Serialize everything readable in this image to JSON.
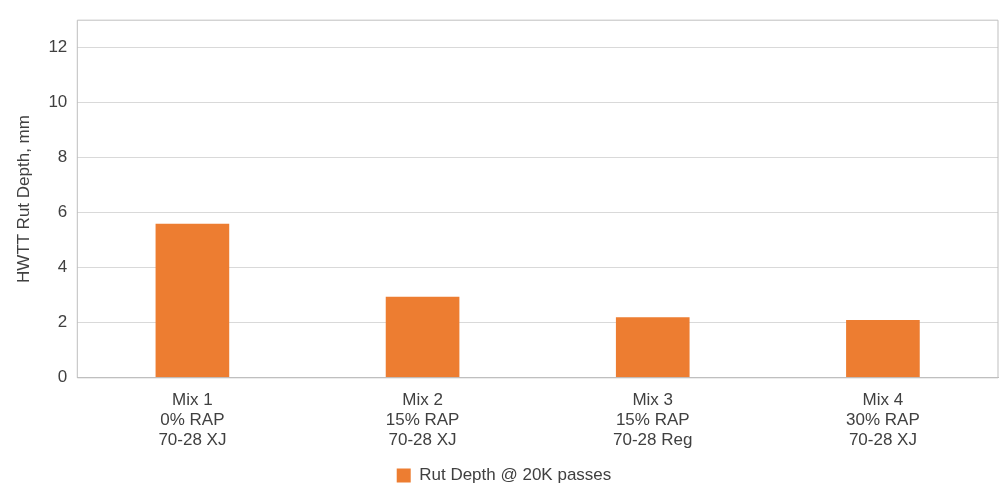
{
  "chart_data": {
    "type": "bar",
    "ylabel": "HWTT Rut Depth, mm",
    "categories": [
      "Mix 1\n0% RAP\n70-28 XJ",
      "Mix 2\n15% RAP\n70-28 XJ",
      "Mix 3\n15% RAP\n70-28 Reg",
      "Mix 4\n30% RAP\n70-28 XJ"
    ],
    "series": [
      {
        "name": "Rut Depth @ 20K passes",
        "color": "#ed7d31",
        "values": [
          5.6,
          2.95,
          2.2,
          2.1
        ]
      }
    ],
    "ylim": [
      0,
      13
    ],
    "yticks": [
      0,
      2,
      4,
      6,
      8,
      10,
      12
    ],
    "grid": "y",
    "legend": "bottom"
  }
}
